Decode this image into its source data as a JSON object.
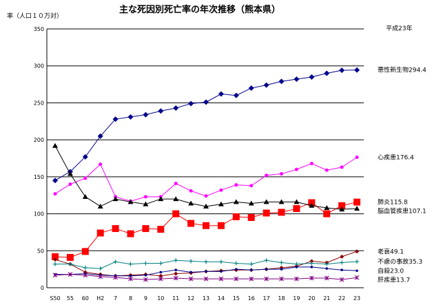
{
  "chart_data": {
    "type": "line",
    "title": "主な死因別死亡率の年次推移（熊本県）",
    "ylabel": "率（人口１０万対）",
    "corner_label": "平成23年",
    "ylim": [
      0,
      350
    ],
    "yticks": [
      0,
      50,
      100,
      150,
      200,
      250,
      300,
      350
    ],
    "categories": [
      "S50",
      "55",
      "60",
      "H2",
      "7",
      "8",
      "9",
      "10",
      "11",
      "12",
      "13",
      "14",
      "15",
      "16",
      "17",
      "18",
      "19",
      "20",
      "21",
      "22",
      "23"
    ],
    "grid": "horizontal",
    "series": [
      {
        "name": "悪性新生物",
        "end_label": "悪性新生物294.4",
        "color": "#00008b",
        "marker": "diamond",
        "values": [
          145,
          157,
          177,
          205,
          228,
          231,
          234,
          239,
          243,
          249,
          251,
          262,
          260,
          270,
          274,
          279,
          282,
          285,
          290,
          294,
          294.4
        ]
      },
      {
        "name": "心疾患",
        "end_label": "心疾患176.4",
        "color": "#ff00ff",
        "marker": "circle",
        "values": [
          127,
          140,
          148,
          167,
          123,
          117,
          123,
          123,
          141,
          131,
          124,
          132,
          139,
          138,
          152,
          154,
          160,
          168,
          159,
          163,
          176.4
        ]
      },
      {
        "name": "肺炎",
        "end_label": "肺炎115.8",
        "color": "#ff0000",
        "marker": "square-large",
        "values": [
          42,
          41,
          49,
          74,
          80,
          73,
          80,
          79,
          100,
          87,
          84,
          84,
          96,
          95,
          101,
          102,
          107,
          115,
          100,
          111,
          115.8
        ]
      },
      {
        "name": "脳血管疾患",
        "end_label": "脳血管疾患107.1",
        "color": "#000000",
        "marker": "triangle",
        "values": [
          192,
          154,
          123,
          110,
          120,
          116,
          113,
          120,
          120,
          114,
          110,
          113,
          116,
          114,
          116,
          116,
          116,
          111,
          108,
          106,
          107.1
        ]
      },
      {
        "name": "老衰",
        "end_label": "老衰49.1",
        "color": "#8b0000",
        "marker": "diamond-small",
        "values": [
          38,
          32,
          21,
          18,
          16,
          17,
          18,
          16,
          19,
          20,
          22,
          23,
          24,
          24,
          25,
          27,
          29,
          36,
          34,
          42,
          49.1
        ]
      },
      {
        "name": "不慮の事故",
        "end_label": "不慮の事故35.3",
        "color": "#008080",
        "marker": "plus",
        "values": [
          32,
          32,
          27,
          26,
          35,
          32,
          33,
          33,
          37,
          36,
          35,
          35,
          33,
          32,
          37,
          34,
          32,
          33,
          32,
          34,
          35.3
        ]
      },
      {
        "name": "自殺",
        "end_label": "自殺23.0",
        "color": "#000080",
        "marker": "dot",
        "values": [
          18,
          18,
          19,
          17,
          16,
          16,
          17,
          21,
          24,
          21,
          22,
          22,
          25,
          24,
          25,
          25,
          28,
          28,
          26,
          24,
          23.0
        ]
      },
      {
        "name": "肝疾患",
        "end_label": "肝疾患13.7",
        "color": "#800080",
        "marker": "star",
        "values": [
          17,
          18,
          17,
          15,
          14,
          12,
          11,
          12,
          13,
          12,
          12,
          12,
          12,
          12,
          12,
          12,
          12,
          13,
          13,
          11,
          13.7
        ]
      }
    ]
  }
}
